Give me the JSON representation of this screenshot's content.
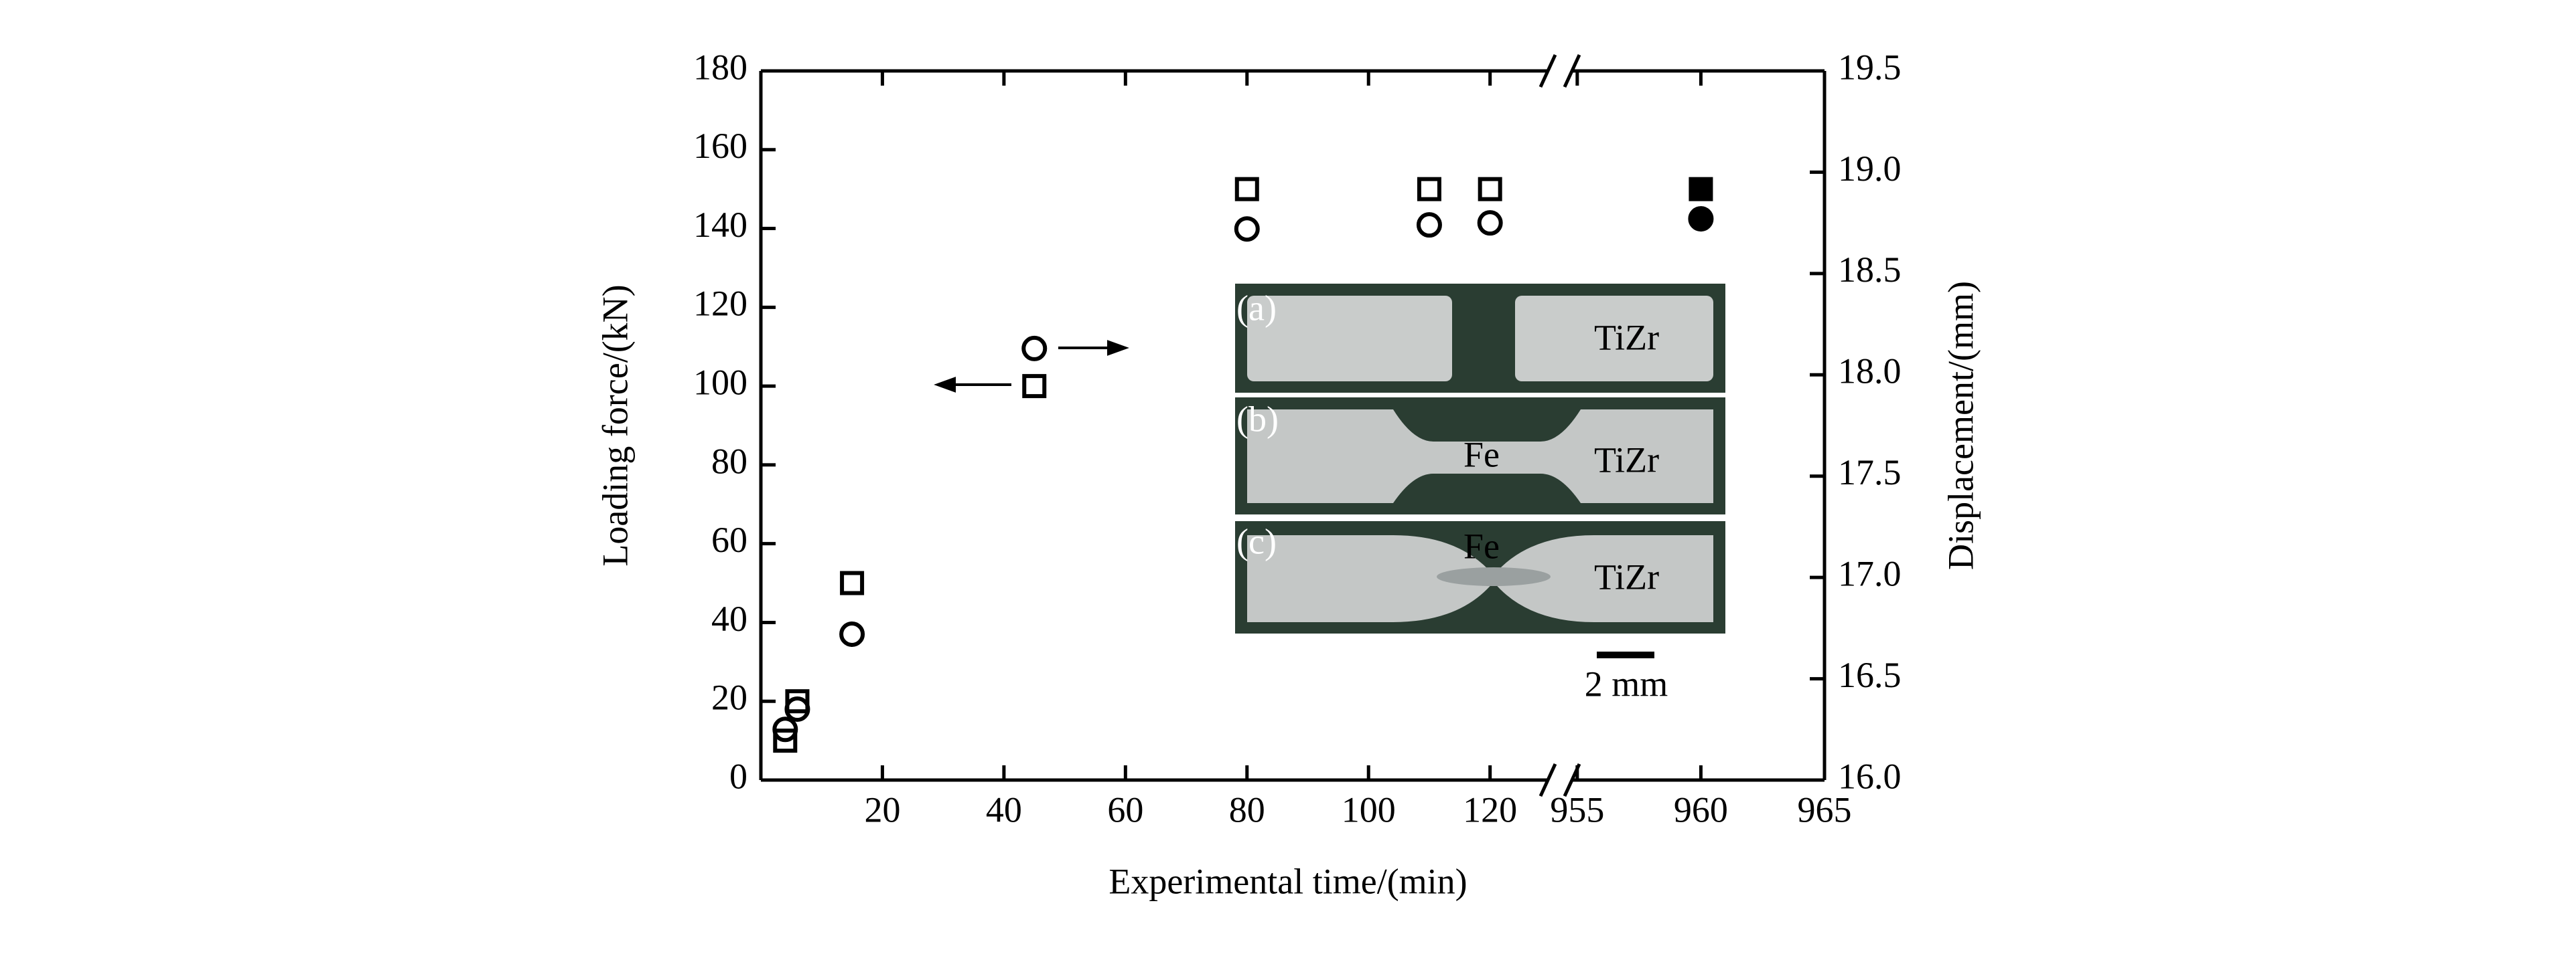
{
  "chart_data": {
    "type": "scatter",
    "x_label": "Experimental time/(min)",
    "y_label": "Loading force/(kN)",
    "y2_label": "Displacement/(mm)",
    "x_segments": [
      {
        "xlim": [
          0,
          131.5
        ],
        "xticks": [
          20,
          40,
          60,
          80,
          100,
          120
        ]
      },
      {
        "xlim": [
          954.3,
          965
        ],
        "xticks": [
          955,
          960,
          965
        ]
      }
    ],
    "ylim": [
      0,
      180
    ],
    "yticks": [
      0,
      20,
      40,
      60,
      80,
      100,
      120,
      140,
      160,
      180
    ],
    "y2lim": [
      16,
      19.5
    ],
    "y2ticks": [
      {
        "value": 16,
        "label": "16.0"
      },
      16.5,
      {
        "value": 17,
        "label": "17.0"
      },
      17.5,
      {
        "value": 18,
        "label": "18.0"
      },
      18.5,
      {
        "value": 19,
        "label": "19.0"
      },
      19.5
    ],
    "series": [
      {
        "marker": "square",
        "color": "#000000",
        "axis": "y",
        "x": [
          4,
          6,
          15,
          45,
          80,
          110,
          120,
          960
        ],
        "values": [
          10,
          20,
          50,
          100,
          150,
          150,
          150,
          150
        ],
        "filled": [
          false,
          false,
          false,
          false,
          false,
          false,
          false,
          true
        ]
      },
      {
        "marker": "circle",
        "color": "#000000",
        "axis": "y2",
        "x": [
          4,
          6,
          15,
          45,
          80,
          110,
          120,
          960
        ],
        "values": [
          16.25,
          16.35,
          16.72,
          18.13,
          18.72,
          18.74,
          18.75,
          18.77
        ],
        "filled": [
          false,
          false,
          false,
          false,
          false,
          false,
          false,
          true
        ]
      }
    ],
    "inset": {
      "panels": [
        {
          "label": "(a)",
          "texts": [
            "TiZr"
          ]
        },
        {
          "label": "(b)",
          "texts": [
            "Fe",
            "TiZr"
          ]
        },
        {
          "label": "(c)",
          "texts": [
            "Fe",
            "TiZr"
          ]
        }
      ],
      "scale_bar": "2 mm"
    }
  }
}
